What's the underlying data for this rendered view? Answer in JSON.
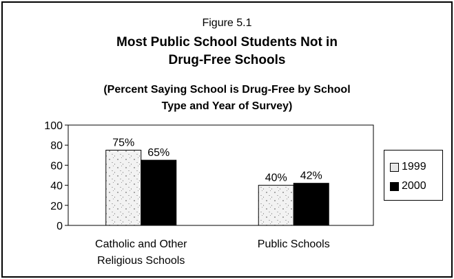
{
  "figure_label": "Figure 5.1",
  "title_lines": [
    "Most Public School Students Not in",
    "Drug-Free Schools"
  ],
  "subtitle_lines": [
    "(Percent Saying School is Drug-Free by School",
    "Type and Year of Survey)"
  ],
  "chart_data": {
    "type": "bar",
    "categories": [
      [
        "Catholic and Other",
        "Religious Schools"
      ],
      [
        "Public Schools"
      ]
    ],
    "series": [
      {
        "name": "1999",
        "values": [
          75,
          40
        ],
        "labels": [
          "75%",
          "40%"
        ],
        "color": "#e8e8e8"
      },
      {
        "name": "2000",
        "values": [
          65,
          42
        ],
        "labels": [
          "65%",
          "42%"
        ],
        "color": "#000000"
      }
    ],
    "ylim": [
      0,
      100
    ],
    "yticks": [
      0,
      20,
      40,
      60,
      80,
      100
    ],
    "grid": false,
    "legend_position": "right",
    "xlabel": "",
    "ylabel": ""
  }
}
